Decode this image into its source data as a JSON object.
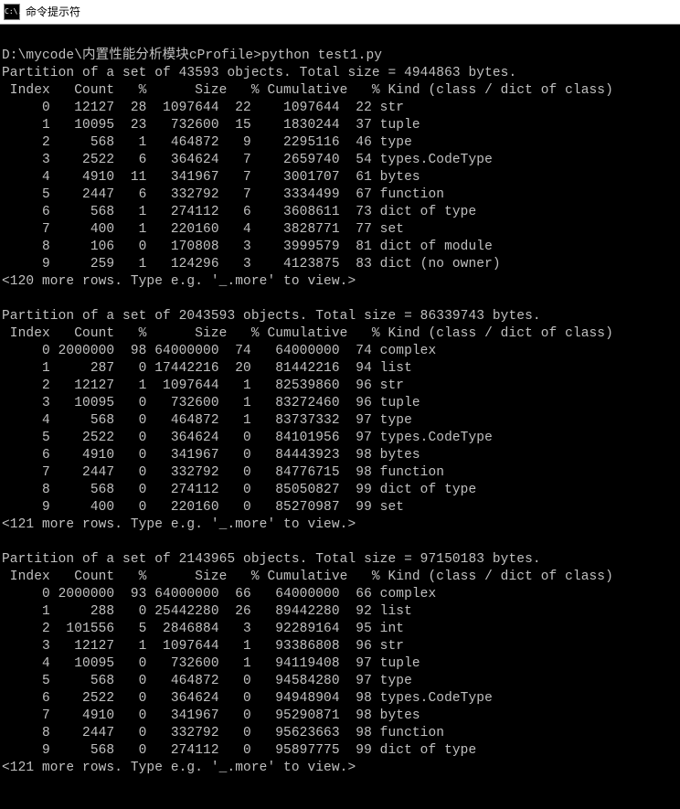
{
  "window": {
    "title": "命令提示符",
    "icon_label": "C:\\."
  },
  "prompt_line": {
    "path": "D:\\mycode\\内置性能分析模块cProfile>",
    "cmd": "python test1.py"
  },
  "header_labels": {
    "index": "Index",
    "count": "Count",
    "pct": "%",
    "size": "Size",
    "cumulative": "Cumulative",
    "kind": "Kind (class / dict of class)"
  },
  "partitions": [
    {
      "summary": "Partition of a set of 43593 objects. Total size = 4944863 bytes.",
      "rows": [
        {
          "index": 0,
          "count": 12127,
          "count_pct": 28,
          "size": 1097644,
          "size_pct": 22,
          "cum": 1097644,
          "cum_pct": 22,
          "kind": "str"
        },
        {
          "index": 1,
          "count": 10095,
          "count_pct": 23,
          "size": 732600,
          "size_pct": 15,
          "cum": 1830244,
          "cum_pct": 37,
          "kind": "tuple"
        },
        {
          "index": 2,
          "count": 568,
          "count_pct": 1,
          "size": 464872,
          "size_pct": 9,
          "cum": 2295116,
          "cum_pct": 46,
          "kind": "type"
        },
        {
          "index": 3,
          "count": 2522,
          "count_pct": 6,
          "size": 364624,
          "size_pct": 7,
          "cum": 2659740,
          "cum_pct": 54,
          "kind": "types.CodeType"
        },
        {
          "index": 4,
          "count": 4910,
          "count_pct": 11,
          "size": 341967,
          "size_pct": 7,
          "cum": 3001707,
          "cum_pct": 61,
          "kind": "bytes"
        },
        {
          "index": 5,
          "count": 2447,
          "count_pct": 6,
          "size": 332792,
          "size_pct": 7,
          "cum": 3334499,
          "cum_pct": 67,
          "kind": "function"
        },
        {
          "index": 6,
          "count": 568,
          "count_pct": 1,
          "size": 274112,
          "size_pct": 6,
          "cum": 3608611,
          "cum_pct": 73,
          "kind": "dict of type"
        },
        {
          "index": 7,
          "count": 400,
          "count_pct": 1,
          "size": 220160,
          "size_pct": 4,
          "cum": 3828771,
          "cum_pct": 77,
          "kind": "set"
        },
        {
          "index": 8,
          "count": 106,
          "count_pct": 0,
          "size": 170808,
          "size_pct": 3,
          "cum": 3999579,
          "cum_pct": 81,
          "kind": "dict of module"
        },
        {
          "index": 9,
          "count": 259,
          "count_pct": 1,
          "size": 124296,
          "size_pct": 3,
          "cum": 4123875,
          "cum_pct": 83,
          "kind": "dict (no owner)"
        }
      ],
      "more": "<120 more rows. Type e.g. '_.more' to view.>"
    },
    {
      "summary": "Partition of a set of 2043593 objects. Total size = 86339743 bytes.",
      "rows": [
        {
          "index": 0,
          "count": 2000000,
          "count_pct": 98,
          "size": 64000000,
          "size_pct": 74,
          "cum": 64000000,
          "cum_pct": 74,
          "kind": "complex"
        },
        {
          "index": 1,
          "count": 287,
          "count_pct": 0,
          "size": 17442216,
          "size_pct": 20,
          "cum": 81442216,
          "cum_pct": 94,
          "kind": "list"
        },
        {
          "index": 2,
          "count": 12127,
          "count_pct": 1,
          "size": 1097644,
          "size_pct": 1,
          "cum": 82539860,
          "cum_pct": 96,
          "kind": "str"
        },
        {
          "index": 3,
          "count": 10095,
          "count_pct": 0,
          "size": 732600,
          "size_pct": 1,
          "cum": 83272460,
          "cum_pct": 96,
          "kind": "tuple"
        },
        {
          "index": 4,
          "count": 568,
          "count_pct": 0,
          "size": 464872,
          "size_pct": 1,
          "cum": 83737332,
          "cum_pct": 97,
          "kind": "type"
        },
        {
          "index": 5,
          "count": 2522,
          "count_pct": 0,
          "size": 364624,
          "size_pct": 0,
          "cum": 84101956,
          "cum_pct": 97,
          "kind": "types.CodeType"
        },
        {
          "index": 6,
          "count": 4910,
          "count_pct": 0,
          "size": 341967,
          "size_pct": 0,
          "cum": 84443923,
          "cum_pct": 98,
          "kind": "bytes"
        },
        {
          "index": 7,
          "count": 2447,
          "count_pct": 0,
          "size": 332792,
          "size_pct": 0,
          "cum": 84776715,
          "cum_pct": 98,
          "kind": "function"
        },
        {
          "index": 8,
          "count": 568,
          "count_pct": 0,
          "size": 274112,
          "size_pct": 0,
          "cum": 85050827,
          "cum_pct": 99,
          "kind": "dict of type"
        },
        {
          "index": 9,
          "count": 400,
          "count_pct": 0,
          "size": 220160,
          "size_pct": 0,
          "cum": 85270987,
          "cum_pct": 99,
          "kind": "set"
        }
      ],
      "more": "<121 more rows. Type e.g. '_.more' to view.>"
    },
    {
      "summary": "Partition of a set of 2143965 objects. Total size = 97150183 bytes.",
      "rows": [
        {
          "index": 0,
          "count": 2000000,
          "count_pct": 93,
          "size": 64000000,
          "size_pct": 66,
          "cum": 64000000,
          "cum_pct": 66,
          "kind": "complex"
        },
        {
          "index": 1,
          "count": 288,
          "count_pct": 0,
          "size": 25442280,
          "size_pct": 26,
          "cum": 89442280,
          "cum_pct": 92,
          "kind": "list"
        },
        {
          "index": 2,
          "count": 101556,
          "count_pct": 5,
          "size": 2846884,
          "size_pct": 3,
          "cum": 92289164,
          "cum_pct": 95,
          "kind": "int"
        },
        {
          "index": 3,
          "count": 12127,
          "count_pct": 1,
          "size": 1097644,
          "size_pct": 1,
          "cum": 93386808,
          "cum_pct": 96,
          "kind": "str"
        },
        {
          "index": 4,
          "count": 10095,
          "count_pct": 0,
          "size": 732600,
          "size_pct": 1,
          "cum": 94119408,
          "cum_pct": 97,
          "kind": "tuple"
        },
        {
          "index": 5,
          "count": 568,
          "count_pct": 0,
          "size": 464872,
          "size_pct": 0,
          "cum": 94584280,
          "cum_pct": 97,
          "kind": "type"
        },
        {
          "index": 6,
          "count": 2522,
          "count_pct": 0,
          "size": 364624,
          "size_pct": 0,
          "cum": 94948904,
          "cum_pct": 98,
          "kind": "types.CodeType"
        },
        {
          "index": 7,
          "count": 4910,
          "count_pct": 0,
          "size": 341967,
          "size_pct": 0,
          "cum": 95290871,
          "cum_pct": 98,
          "kind": "bytes"
        },
        {
          "index": 8,
          "count": 2447,
          "count_pct": 0,
          "size": 332792,
          "size_pct": 0,
          "cum": 95623663,
          "cum_pct": 98,
          "kind": "function"
        },
        {
          "index": 9,
          "count": 568,
          "count_pct": 0,
          "size": 274112,
          "size_pct": 0,
          "cum": 95897775,
          "cum_pct": 99,
          "kind": "dict of type"
        }
      ],
      "more": "<121 more rows. Type e.g. '_.more' to view.>"
    }
  ],
  "colwidths": {
    "index": 6,
    "count": 8,
    "count_pct": 4,
    "size": 9,
    "size_pct": 4,
    "cum": 11,
    "cum_pct": 4
  },
  "colors": {
    "bg": "#000000",
    "fg": "#c0c0c0",
    "titlebar_bg": "#ffffff",
    "titlebar_fg": "#000000"
  }
}
